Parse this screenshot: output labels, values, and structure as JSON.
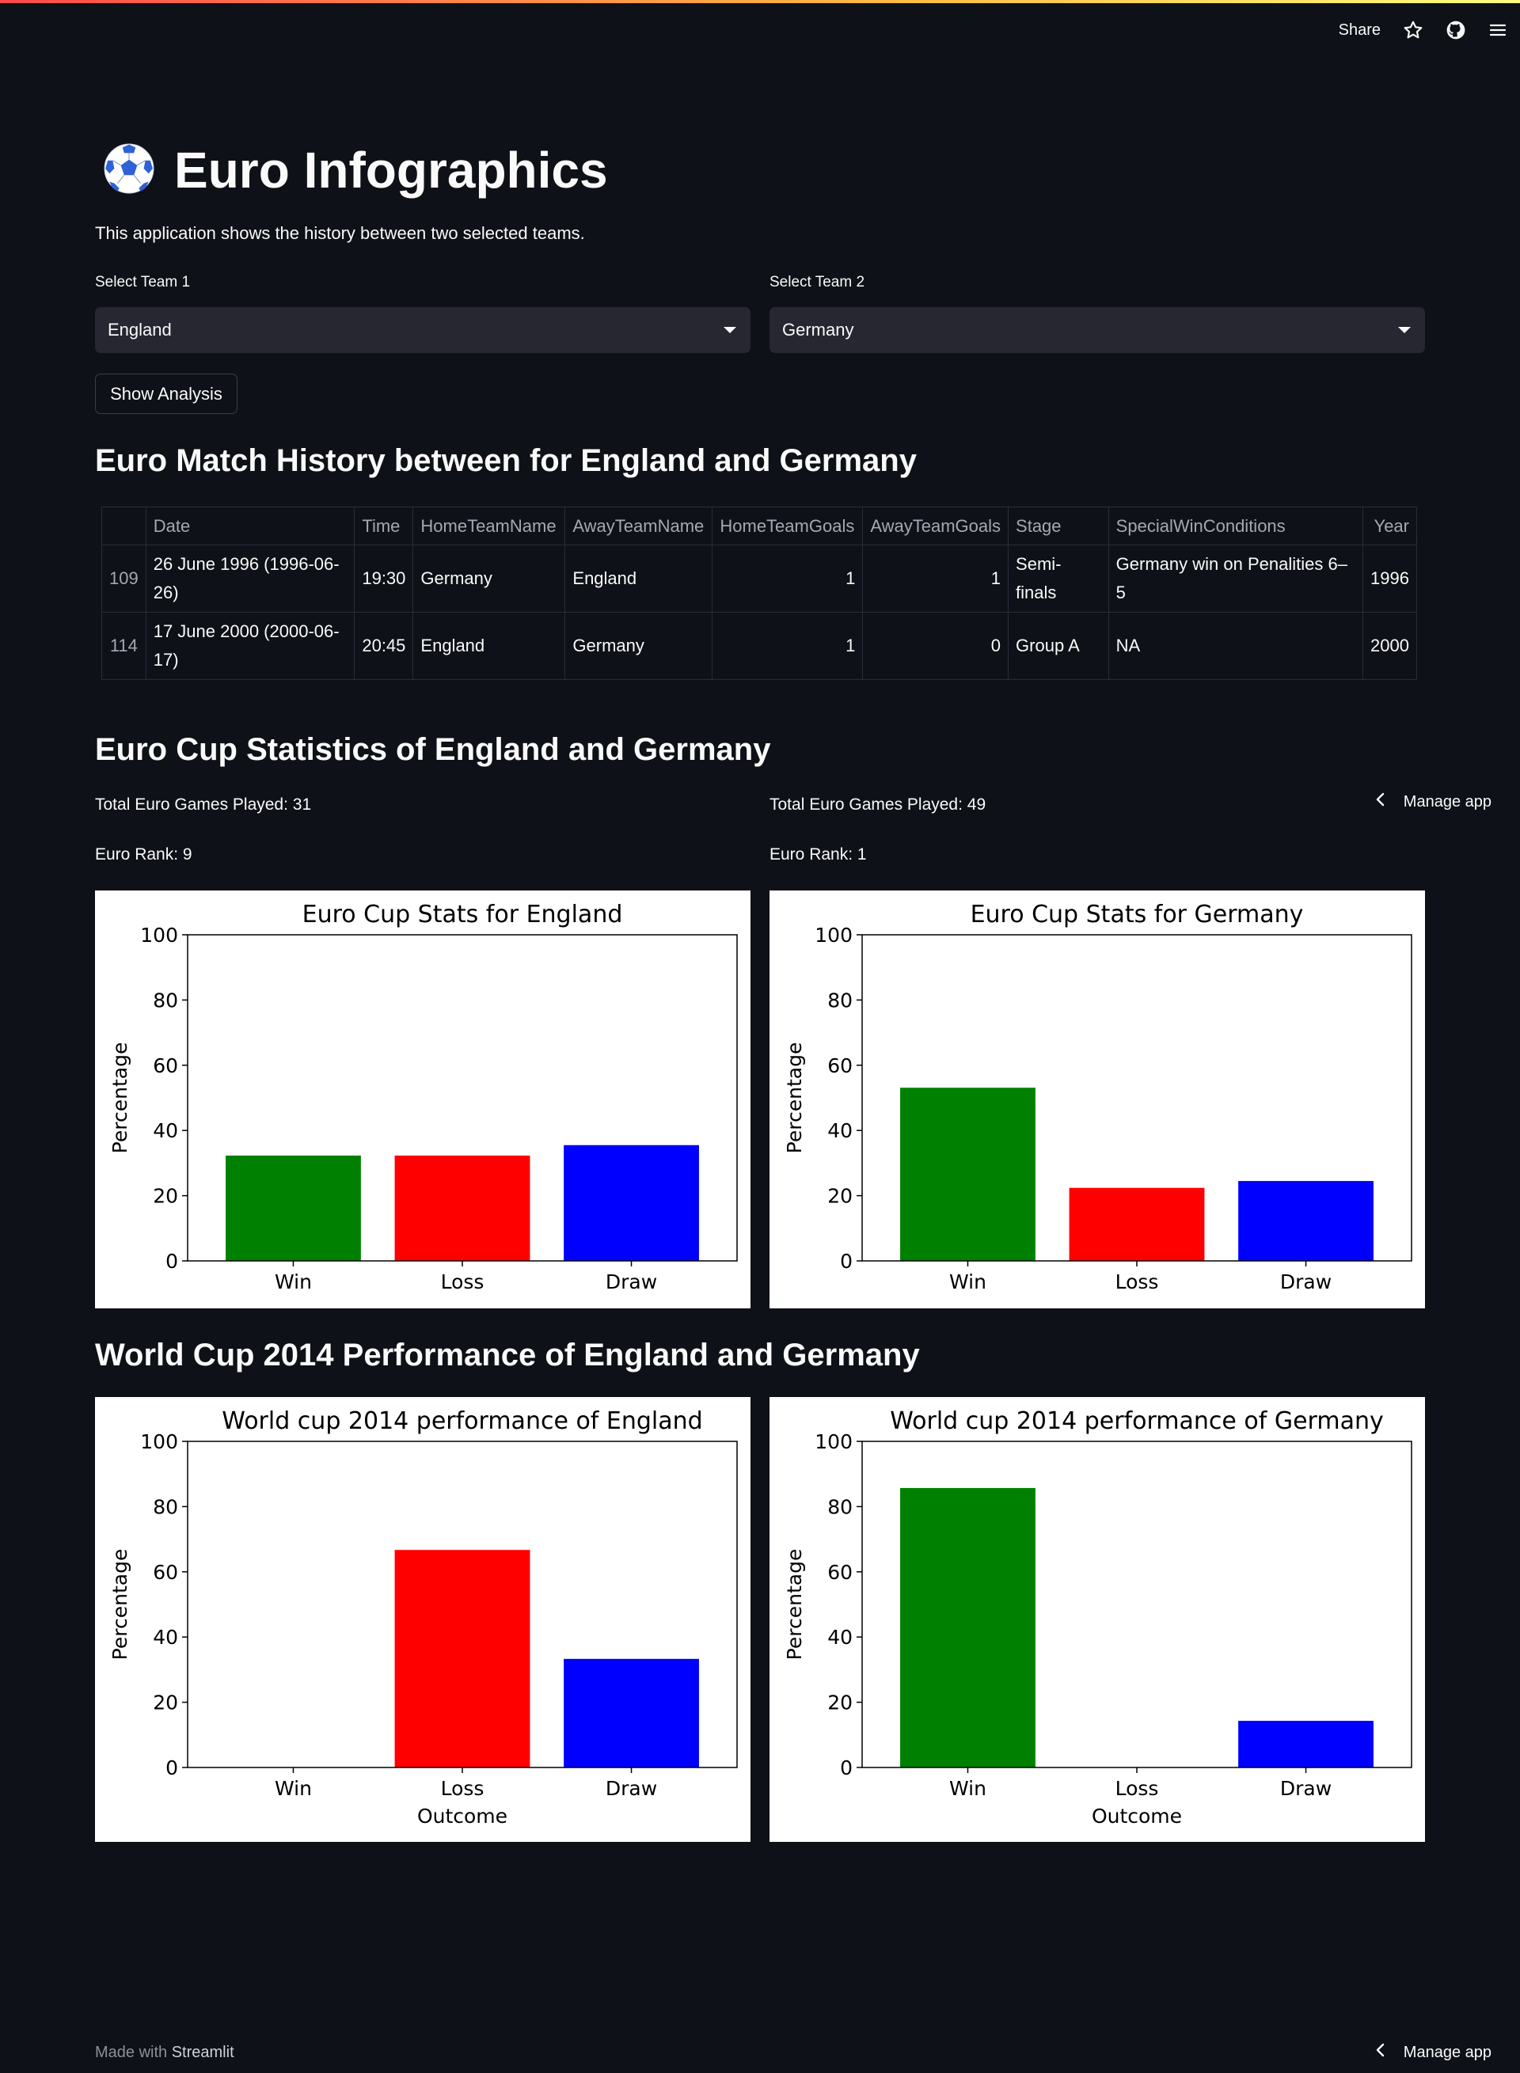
{
  "topbar": {
    "share_label": "Share"
  },
  "header": {
    "icon": "soccer-ball-icon",
    "title": "Euro Infographics",
    "subtitle": "This application shows the history between two selected teams."
  },
  "controls": {
    "team1_label": "Select Team 1",
    "team1_value": "England",
    "team2_label": "Select Team 2",
    "team2_value": "Germany",
    "analysis_button": "Show Analysis"
  },
  "history": {
    "heading": "Euro Match History between for England and Germany",
    "columns": [
      "",
      "Date",
      "Time",
      "HomeTeamName",
      "AwayTeamName",
      "HomeTeamGoals",
      "AwayTeamGoals",
      "Stage",
      "SpecialWinConditions",
      "Year"
    ],
    "rows": [
      [
        "109",
        "26 June 1996 (1996-06-26)",
        "19:30",
        "Germany",
        "England",
        "1",
        "1",
        "Semi-finals",
        "Germany  win on Penalities 6–5",
        "1996"
      ],
      [
        "114",
        "17 June 2000 (2000-06-17)",
        "20:45",
        "England",
        "Germany",
        "1",
        "0",
        "Group A",
        "NA",
        "2000"
      ]
    ]
  },
  "stats": {
    "heading": "Euro Cup Statistics of England and Germany",
    "team1_games": "Total Euro Games Played: 31",
    "team1_rank": "Euro Rank: 9",
    "team2_games": "Total Euro Games Played: 49",
    "team2_rank": "Euro Rank: 1"
  },
  "manage_app_label": "Manage app",
  "worldcup": {
    "heading": "World Cup 2014 Performance of England and Germany"
  },
  "chart_data": [
    {
      "type": "bar",
      "title": "Euro Cup Stats for England",
      "categories": [
        "Win",
        "Loss",
        "Draw"
      ],
      "values": [
        32.3,
        32.3,
        35.5
      ],
      "colors": [
        "#008000",
        "#ff0000",
        "#0000ff"
      ],
      "ylabel": "Percentage",
      "xlabel": "",
      "ylim": [
        0,
        100
      ],
      "yticks": [
        0,
        20,
        40,
        60,
        80,
        100
      ]
    },
    {
      "type": "bar",
      "title": "Euro Cup Stats for Germany",
      "categories": [
        "Win",
        "Loss",
        "Draw"
      ],
      "values": [
        53.1,
        22.4,
        24.5
      ],
      "colors": [
        "#008000",
        "#ff0000",
        "#0000ff"
      ],
      "ylabel": "Percentage",
      "xlabel": "",
      "ylim": [
        0,
        100
      ],
      "yticks": [
        0,
        20,
        40,
        60,
        80,
        100
      ]
    },
    {
      "type": "bar",
      "title": "World cup 2014 performance of England",
      "categories": [
        "Win",
        "Loss",
        "Draw"
      ],
      "values": [
        0,
        66.7,
        33.3
      ],
      "colors": [
        "#008000",
        "#ff0000",
        "#0000ff"
      ],
      "ylabel": "Percentage",
      "xlabel": "Outcome",
      "ylim": [
        0,
        100
      ],
      "yticks": [
        0,
        20,
        40,
        60,
        80,
        100
      ]
    },
    {
      "type": "bar",
      "title": "World cup 2014 performance of Germany",
      "categories": [
        "Win",
        "Loss",
        "Draw"
      ],
      "values": [
        85.7,
        0,
        14.3
      ],
      "colors": [
        "#008000",
        "#ff0000",
        "#0000ff"
      ],
      "ylabel": "Percentage",
      "xlabel": "Outcome",
      "ylim": [
        0,
        100
      ],
      "yticks": [
        0,
        20,
        40,
        60,
        80,
        100
      ]
    }
  ],
  "footer": {
    "prefix": "Made with",
    "brand": "Streamlit"
  }
}
